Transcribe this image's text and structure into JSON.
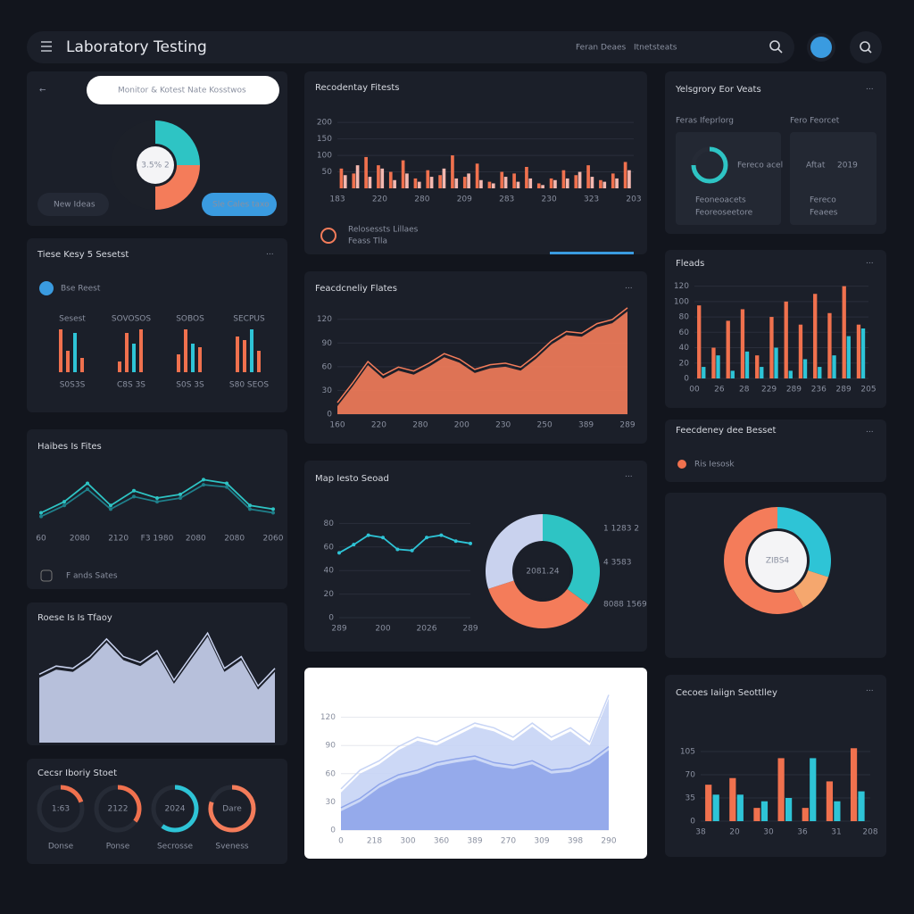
{
  "topbar": {
    "title": "Laboratory Testing",
    "links": [
      "Feran Deaes",
      "Itnetsteats"
    ]
  },
  "search": {
    "placeholder": "Monitor & Kotest Nate Kosstwos",
    "buttons": [
      "New Ideas",
      "Sle Cales taxo"
    ],
    "chart": {
      "type": "donut",
      "values": [
        25,
        25,
        50
      ],
      "colors": [
        "#2ec4c4",
        "#f47c5a",
        "#1c2029"
      ],
      "center": "3.5% 2"
    }
  },
  "panels": [
    {
      "title": "Recodentay Fitests",
      "footer": [
        "Relosessts Lillaes",
        "Feass Tlla"
      ],
      "chart": {
        "type": "bar",
        "ylim": [
          0,
          260
        ],
        "yticks": [
          50,
          100,
          150,
          200
        ],
        "xlabels": [
          "183",
          "220",
          "280",
          "209",
          "283",
          "230",
          "323",
          "203"
        ],
        "series": [
          {
            "color": "#f0714e",
            "values": [
              60,
              45,
              95,
              70,
              50,
              85,
              30,
              55,
              40,
              100,
              35,
              75,
              20,
              50,
              45,
              65,
              15,
              30,
              55,
              40,
              70,
              25,
              45,
              80
            ]
          },
          {
            "color": "#f3b8b0",
            "values": [
              40,
              70,
              35,
              60,
              25,
              45,
              20,
              35,
              60,
              30,
              45,
              25,
              15,
              35,
              20,
              30,
              10,
              25,
              30,
              50,
              35,
              20,
              30,
              55
            ]
          }
        ]
      }
    },
    {
      "title": "Yelsgrory Eor Veats",
      "cards": [
        {
          "title": "Feras Ifeprlorg",
          "ring": 75,
          "note": "Fereco acel",
          "lines": [
            "Feoneoacets",
            "Feoreoseetore"
          ]
        },
        {
          "title": "Fero Feorcet",
          "text": "Aftat",
          "note": "2019",
          "lines": [
            "Fereco",
            "Feaees"
          ]
        }
      ]
    },
    {
      "title": "Tiese Kesy 5 Sesetst",
      "legend": "Bse Reest",
      "groups": [
        {
          "label": "Sesest",
          "foot": "S0S3S",
          "values": [
            60,
            30,
            55,
            20
          ]
        },
        {
          "label": "SOVOSOS",
          "foot": "C8S 3S",
          "values": [
            15,
            55,
            40,
            60
          ]
        },
        {
          "label": "SOBOS",
          "foot": "S0S 3S",
          "values": [
            25,
            60,
            40,
            35
          ]
        },
        {
          "label": "SECPUS",
          "foot": "S80 SEOS",
          "values": [
            50,
            45,
            60,
            30
          ]
        }
      ]
    },
    {
      "title": "Feacdcneliy Flates",
      "chart": {
        "type": "area",
        "ylim": [
          0,
          140
        ],
        "yticks": [
          0,
          30,
          60,
          90,
          120
        ],
        "xlabels": [
          "160",
          "220",
          "280",
          "200",
          "230",
          "250",
          "389",
          "289"
        ],
        "series": [
          {
            "color": "#f47c5a",
            "values": [
              10,
              35,
              62,
              45,
              55,
              50,
              60,
              72,
              65,
              52,
              58,
              60,
              55,
              70,
              88,
              100,
              98,
              110,
              115,
              130
            ]
          }
        ]
      }
    },
    {
      "title": "Fleads",
      "chart": {
        "type": "bar",
        "ylim": [
          0,
          130
        ],
        "yticks": [
          0,
          20,
          40,
          60,
          80,
          100,
          120
        ],
        "xlabels": [
          "00",
          "26",
          "28",
          "229",
          "289",
          "236",
          "289",
          "205"
        ],
        "series": [
          {
            "color": "#f0714e",
            "values": [
              95,
              40,
              75,
              90,
              30,
              80,
              100,
              70,
              110,
              85,
              120,
              70
            ]
          },
          {
            "color": "#2ec4d6",
            "values": [
              15,
              30,
              10,
              35,
              15,
              40,
              10,
              25,
              15,
              30,
              55,
              65
            ]
          }
        ]
      }
    },
    {
      "title": "Feecdeney dee Besset",
      "item": "Ris Iesosk"
    },
    {
      "title": "Haibes Is Fites",
      "footer": [
        "F ands Sates"
      ],
      "chart": {
        "type": "line",
        "ylim": [
          0,
          80
        ],
        "xlabels": [
          "60",
          "2080",
          "2120",
          "F3 1980",
          "2080",
          "2080",
          "2060"
        ],
        "series": [
          {
            "color": "#2ec4c4",
            "values": [
              20,
              35,
              60,
              30,
              50,
              40,
              45,
              65,
              60,
              30,
              25
            ]
          },
          {
            "color": "#1f7f8a",
            "values": [
              15,
              30,
              52,
              25,
              42,
              35,
              40,
              58,
              55,
              25,
              20
            ]
          }
        ]
      }
    },
    {
      "title": "Map Iesto Seoad",
      "chart": {
        "type": "line",
        "ylim": [
          0,
          100
        ],
        "yticks": [
          0,
          20,
          40,
          60,
          80
        ],
        "xlabels": [
          "289",
          "200",
          "2026",
          "289"
        ],
        "series": [
          {
            "color": "#2ec4d6",
            "values": [
              55,
              62,
              70,
              68,
              58,
              57,
              68,
              70,
              65,
              63
            ]
          }
        ]
      },
      "donut": {
        "type": "donut",
        "values": [
          35,
          35,
          30
        ],
        "colors": [
          "#2ec4c4",
          "#f47c5a",
          "#c9d2ee"
        ],
        "center": "2081.24",
        "labels": [
          "1 1283 2",
          "4 3583",
          "8088 1569"
        ]
      }
    },
    {
      "donut": {
        "type": "donut",
        "values": [
          30,
          12,
          58
        ],
        "colors": [
          "#2ec4d6",
          "#f5a76e",
          "#f47c5a"
        ],
        "center": "ZIBS4"
      }
    },
    {
      "title": "Roese Is Is Tfaoy",
      "chart": {
        "type": "area",
        "ylim": [
          0,
          100
        ],
        "xlabels": [],
        "series": [
          {
            "color": "#c9d2ee",
            "values": [
              55,
              62,
              60,
              70,
              85,
              70,
              65,
              75,
              50,
              70,
              90,
              60,
              70,
              45,
              60
            ]
          }
        ]
      }
    },
    {
      "chart": {
        "type": "area",
        "ylim": [
          0,
          150
        ],
        "yticks": [
          0,
          30,
          60,
          90,
          120
        ],
        "xlabels": [
          "0",
          "218",
          "300",
          "360",
          "389",
          "270",
          "309",
          "398",
          "290"
        ],
        "series": [
          {
            "color": "#c7d4f5",
            "values": [
              40,
              60,
              70,
              85,
              95,
              90,
              100,
              110,
              105,
              95,
              110,
              95,
              105,
              90,
              140
            ]
          },
          {
            "color": "#8fa5ea",
            "values": [
              20,
              30,
              45,
              55,
              60,
              68,
              72,
              75,
              68,
              65,
              70,
              60,
              62,
              70,
              85
            ]
          }
        ]
      }
    },
    {
      "title": "Cecoes Iaiign Seottlley",
      "chart": {
        "type": "bar",
        "ylim": [
          0,
          140
        ],
        "yticks": [
          0,
          35,
          70,
          105
        ],
        "xlabels": [
          "38",
          "20",
          "30",
          "36",
          "31",
          "208"
        ],
        "series": [
          {
            "color": "#f0714e",
            "values": [
              55,
              65,
              20,
              95,
              20,
              60,
              110
            ]
          },
          {
            "color": "#2ec4d6",
            "values": [
              40,
              40,
              30,
              35,
              95,
              30,
              45
            ]
          }
        ]
      }
    },
    {
      "title": "Cecsr Iboriy Stoet",
      "rings": [
        {
          "value": 20,
          "label": "1:63",
          "caption": "Donse"
        },
        {
          "value": 35,
          "label": "2122",
          "caption": "Ponse"
        },
        {
          "value": 60,
          "label": "2024",
          "caption": "Secrosse"
        },
        {
          "value": 80,
          "label": "Dare",
          "caption": "Sveness"
        }
      ]
    }
  ]
}
